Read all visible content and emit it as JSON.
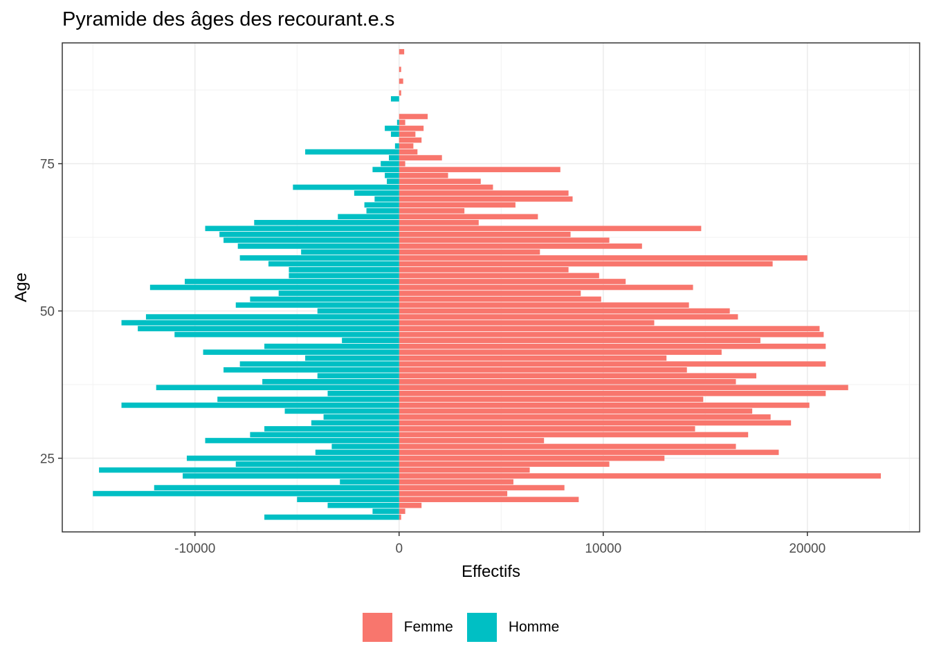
{
  "chart_data": {
    "type": "bar",
    "orientation": "horizontal",
    "title": "Pyramide des âges des recourant.e.s",
    "xlabel": "Effectifs",
    "ylabel": "Age",
    "xlim": [
      -16500,
      25500
    ],
    "ylim": [
      12.5,
      95.5
    ],
    "x_ticks": [
      -10000,
      0,
      10000,
      20000
    ],
    "y_ticks": [
      25,
      50,
      75
    ],
    "grid": true,
    "legend_position": "bottom",
    "categories": [
      15,
      16,
      17,
      18,
      19,
      20,
      21,
      22,
      23,
      24,
      25,
      26,
      27,
      28,
      29,
      30,
      31,
      32,
      33,
      34,
      35,
      36,
      37,
      38,
      39,
      40,
      41,
      42,
      43,
      44,
      45,
      46,
      47,
      48,
      49,
      50,
      51,
      52,
      53,
      54,
      55,
      56,
      57,
      58,
      59,
      60,
      61,
      62,
      63,
      64,
      65,
      66,
      67,
      68,
      69,
      70,
      71,
      72,
      73,
      74,
      75,
      76,
      77,
      78,
      79,
      80,
      81,
      82,
      83,
      84,
      85,
      86,
      87,
      88,
      89,
      90,
      91,
      92,
      93,
      94
    ],
    "series": [
      {
        "name": "Femme",
        "color": "#F8766D",
        "values": [
          100,
          300,
          1100,
          8800,
          5300,
          8100,
          5600,
          23600,
          6400,
          10300,
          13000,
          18600,
          16500,
          7100,
          17100,
          14500,
          19200,
          18200,
          17300,
          20100,
          14900,
          20900,
          22000,
          16500,
          17500,
          14100,
          20900,
          13100,
          15800,
          20900,
          17700,
          20800,
          20600,
          12500,
          16600,
          16200,
          14200,
          9900,
          8900,
          14400,
          11100,
          9800,
          8300,
          18300,
          20000,
          6900,
          11900,
          10300,
          8400,
          14800,
          3900,
          6800,
          3200,
          5700,
          8500,
          8300,
          4600,
          4000,
          2400,
          7900,
          300,
          2100,
          900,
          700,
          1100,
          800,
          1200,
          300,
          1400,
          0,
          0,
          0,
          100,
          0,
          200,
          0,
          100,
          0,
          0,
          250
        ]
      },
      {
        "name": "Homme",
        "color": "#00BFC4",
        "values": [
          -6600,
          -1300,
          -3500,
          -5000,
          -15000,
          -12000,
          -2900,
          -10600,
          -14700,
          -8000,
          -10400,
          -4100,
          -3300,
          -9500,
          -7300,
          -6600,
          -4300,
          -3700,
          -5600,
          -13600,
          -8900,
          -3500,
          -11900,
          -6700,
          -4000,
          -8600,
          -7800,
          -4600,
          -9600,
          -6600,
          -2800,
          -11000,
          -12800,
          -13600,
          -12400,
          -4000,
          -8000,
          -7300,
          -5900,
          -12200,
          -10500,
          -5400,
          -5400,
          -6400,
          -7800,
          -4800,
          -7900,
          -8600,
          -8800,
          -9500,
          -7100,
          -3000,
          -1600,
          -1700,
          -1200,
          -2200,
          -5200,
          -600,
          -700,
          -1300,
          -900,
          -500,
          -4600,
          -200,
          0,
          -400,
          -700,
          -100,
          0,
          0,
          0,
          -400,
          0,
          0,
          0,
          0,
          0,
          0,
          0,
          0
        ]
      }
    ]
  }
}
